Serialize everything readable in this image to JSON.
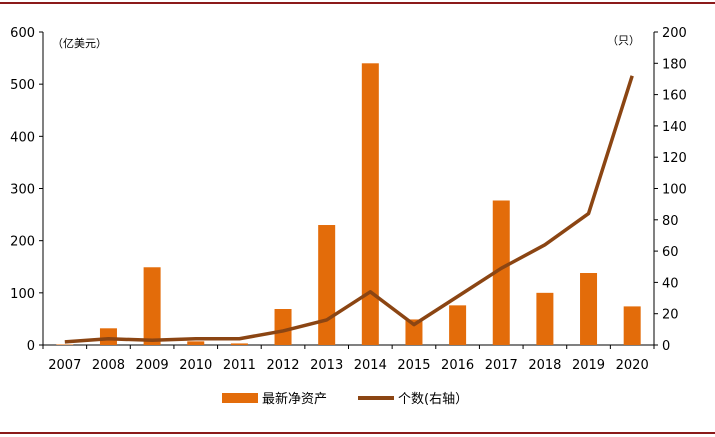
{
  "chart_data": {
    "type": "bar",
    "categories": [
      "2007",
      "2008",
      "2009",
      "2010",
      "2011",
      "2012",
      "2013",
      "2014",
      "2015",
      "2016",
      "2017",
      "2018",
      "2019",
      "2020"
    ],
    "series": [
      {
        "name": "最新净资产",
        "type": "bar",
        "axis": "left",
        "color": "#e36c0a",
        "values": [
          1,
          32,
          149,
          7,
          3,
          69,
          230,
          540,
          49,
          76,
          277,
          100,
          138,
          74
        ]
      },
      {
        "name": "个数(右轴）",
        "type": "line",
        "axis": "right",
        "color": "#8b4513",
        "values": [
          2,
          4,
          3,
          4,
          4,
          9,
          16,
          34,
          13,
          31,
          49,
          64,
          84,
          172
        ]
      }
    ],
    "y_left": {
      "unit": "（亿美元）",
      "ylim": [
        0,
        600
      ],
      "ticks": [
        0,
        100,
        200,
        300,
        400,
        500,
        600
      ]
    },
    "y_right": {
      "unit": "（只）",
      "ylim": [
        0,
        200
      ],
      "ticks": [
        0,
        20,
        40,
        60,
        80,
        100,
        120,
        140,
        160,
        180,
        200
      ]
    },
    "grid": false,
    "legend_position": "bottom"
  }
}
